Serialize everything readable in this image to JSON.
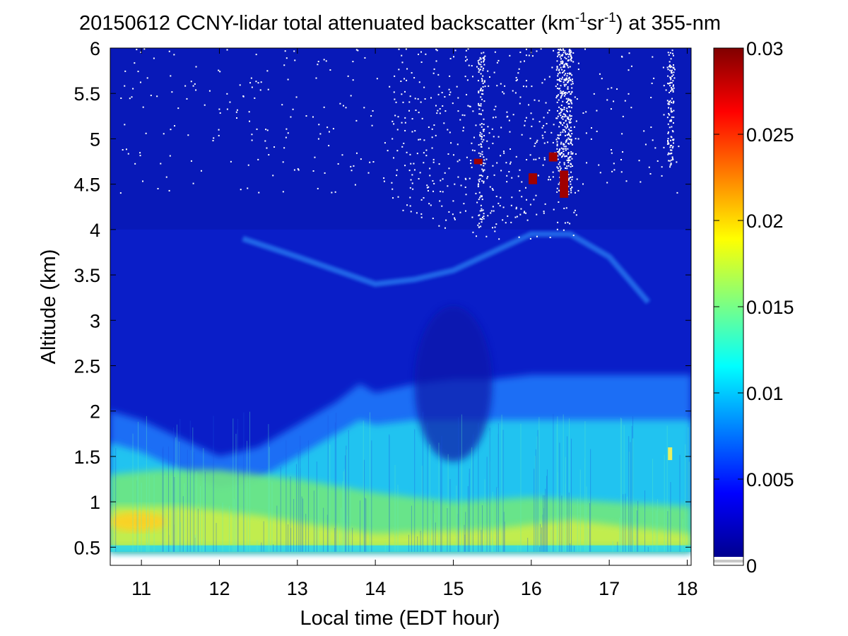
{
  "chart_data": {
    "type": "heatmap",
    "title": {
      "prefix": "20150612 CCNY-lidar total attenuated backscatter (km",
      "sup1": "-1",
      "mid": "sr",
      "sup2": "-1",
      "suffix": ") at 355-nm"
    },
    "xlabel": "Local time (EDT hour)",
    "ylabel": "Altitude (km)",
    "xlim": [
      10.6,
      18.05
    ],
    "ylim": [
      0.3,
      6.0
    ],
    "xticks": [
      11,
      12,
      13,
      14,
      15,
      16,
      17,
      18
    ],
    "xtick_labels": [
      "11",
      "12",
      "13",
      "14",
      "15",
      "16",
      "17",
      "18"
    ],
    "yticks": [
      0.5,
      1,
      1.5,
      2,
      2.5,
      3,
      3.5,
      4,
      4.5,
      5,
      5.5,
      6
    ],
    "ytick_labels": [
      "0.5",
      "1",
      "1.5",
      "2",
      "2.5",
      "3",
      "3.5",
      "4",
      "4.5",
      "5",
      "5.5",
      "6"
    ],
    "data_altitude_min": 0.45,
    "colormap": "jet",
    "colorbar": {
      "range": [
        0,
        0.03
      ],
      "ticks": [
        0,
        0.005,
        0.01,
        0.015,
        0.02,
        0.025,
        0.03
      ],
      "tick_labels": [
        "0",
        "0.005",
        "0.01",
        "0.015",
        "0.02",
        "0.025",
        "0.03"
      ]
    },
    "boundary_layer_top_km": {
      "time": [
        10.6,
        11.0,
        11.5,
        12.0,
        12.5,
        13.0,
        13.5,
        13.8,
        14.0,
        14.5,
        15.0,
        15.5,
        16.0,
        16.5,
        17.0,
        17.5,
        18.05
      ],
      "height": [
        2.0,
        1.9,
        1.7,
        1.5,
        1.6,
        1.85,
        2.1,
        2.3,
        2.2,
        2.3,
        2.35,
        2.35,
        2.4,
        2.4,
        2.4,
        2.4,
        2.4
      ]
    },
    "aerosol_layer": {
      "time": [
        12.3,
        13.0,
        13.5,
        14.0,
        14.5,
        15.0,
        15.5,
        16.0,
        16.5,
        17.0,
        17.5
      ],
      "height": [
        3.9,
        3.7,
        3.55,
        3.4,
        3.45,
        3.55,
        3.75,
        3.95,
        3.95,
        3.7,
        3.2
      ]
    },
    "cloud_patches": [
      {
        "time": 16.42,
        "alt_min": 4.35,
        "alt_max": 4.65
      },
      {
        "time": 16.28,
        "alt_min": 4.75,
        "alt_max": 4.85
      },
      {
        "time": 16.02,
        "alt_min": 4.5,
        "alt_max": 4.62
      },
      {
        "time": 15.32,
        "alt_min": 4.72,
        "alt_max": 4.78
      }
    ],
    "noise_columns_time": [
      15.35,
      16.42,
      17.78
    ]
  }
}
